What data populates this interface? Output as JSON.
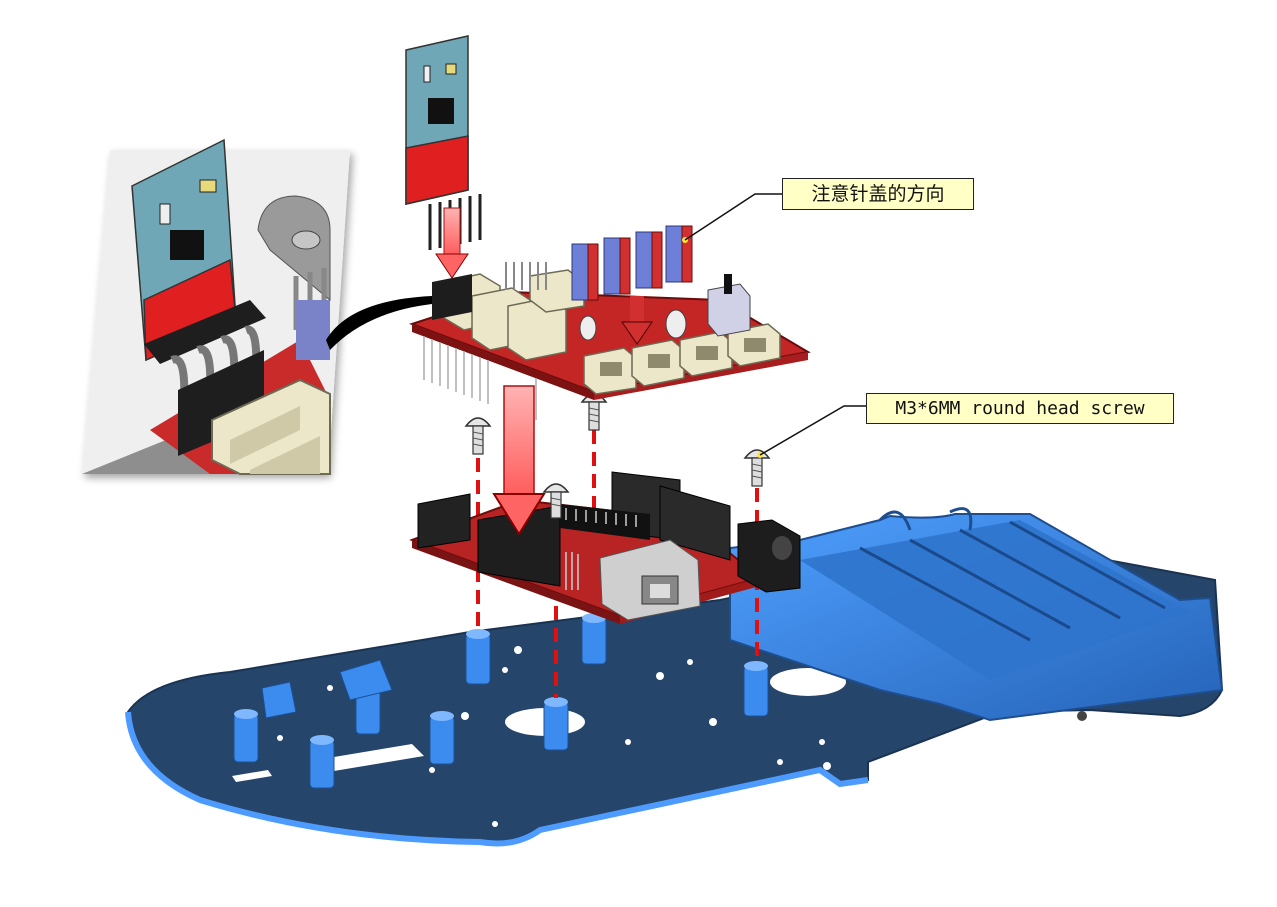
{
  "callouts": {
    "pin_cap_orientation": "注意针盖的方向",
    "screw_spec": "M3*6MM round head screw"
  },
  "colors": {
    "chassis": "#2e4f78",
    "chassis_edge": "#3f7fd0",
    "battery_box": "#3c86da",
    "shield_board": "#c92a2a",
    "connector_beige": "#ece7c9",
    "header_black": "#222222",
    "guide_arrow": "#ff6f6f",
    "dash_line": "#e01010",
    "callout_fill": "#ffffc6"
  },
  "icons": {
    "arrow": "down-arrow-icon",
    "screw": "screw-icon"
  }
}
